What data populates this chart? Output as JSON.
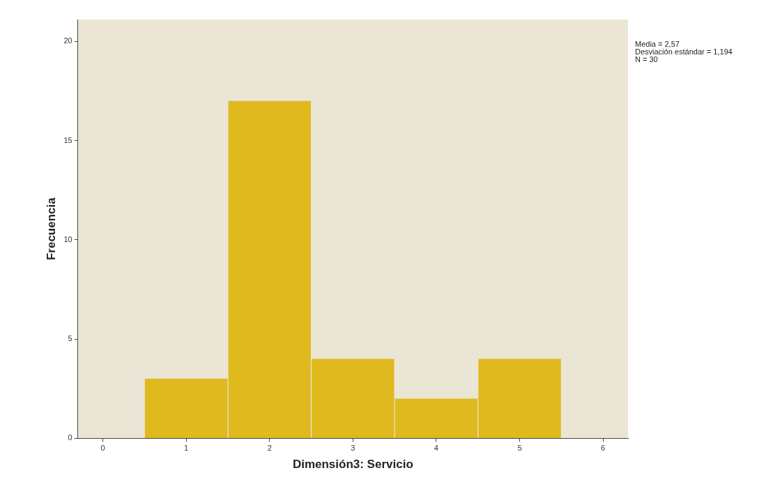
{
  "chart_data": {
    "type": "histogram",
    "xlabel": "Dimensión3: Servicio",
    "ylabel": "Frecuencia",
    "bins": [
      0.5,
      1.5,
      2.5,
      3.5,
      4.5,
      5.5
    ],
    "values": [
      3,
      17,
      4,
      2,
      4
    ],
    "color": "#e0b91f",
    "xlim": [
      -0.3,
      6.3
    ],
    "xticks": [
      0,
      1,
      2,
      3,
      4,
      5,
      6
    ],
    "ylim": [
      0,
      21.1
    ],
    "yticks": [
      0,
      5,
      10,
      15,
      20
    ],
    "annotations": [
      "Media = 2,57",
      "Desviación estándar = 1,194",
      "N = 30"
    ],
    "grid": false,
    "legend": false
  }
}
